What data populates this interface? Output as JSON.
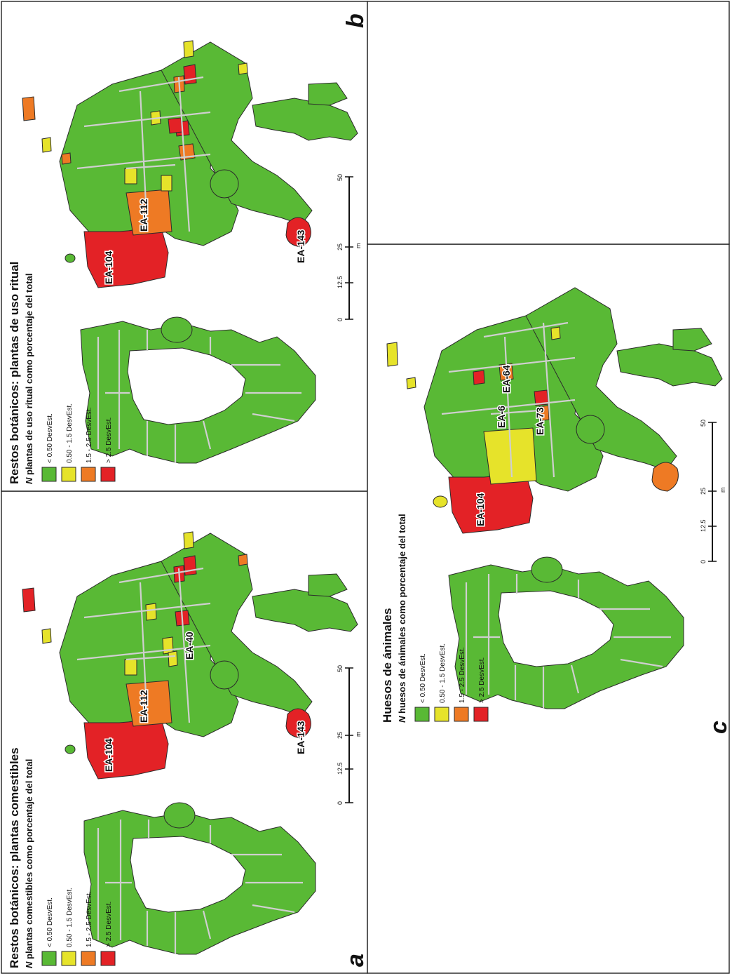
{
  "colors": {
    "green": "#59b935",
    "yellow": "#e6e32a",
    "orange": "#ee7a24",
    "red": "#e32226"
  },
  "panels": {
    "a": {
      "letter": "a",
      "title": "Restos botánicos: plantas comestibles",
      "subtitle_italic": "N",
      "subtitle_rest": " plantas comestibles como porcentaje del total",
      "legend": [
        "< 0.50 DesvEst.",
        "0.50 - 1.5 DesvEst.",
        "1.5 - 2.5 DesvEst.",
        "> 2.5 DesvEst."
      ],
      "labels": [
        "EA-104",
        "EA-112",
        "EA-40",
        "EA-143"
      ]
    },
    "b": {
      "letter": "b",
      "title": "Restos botánicos: plantas de uso ritual",
      "subtitle_italic": "N",
      "subtitle_rest": " plantas de uso ritual como porcentaje del total",
      "legend": [
        "< 0.50 DesvEst.",
        "0.50 - 1.5 DesvEst.",
        "1.5 - 2.5 DesvEst.",
        "> 2.5 DesvEst."
      ],
      "labels": [
        "EA-104",
        "EA-112",
        "EA-143"
      ]
    },
    "c": {
      "letter": "c",
      "title": "Huesos de ánimales",
      "subtitle_italic": "N",
      "subtitle_rest": " huesos de ánimales como porcentaje del total",
      "legend": [
        "< 0.50 DesvEst.",
        "0.50 - 1.5 DesvEst.",
        "1.5 - 2.5 DesvEst.",
        "> 2.5 DesvEst."
      ],
      "labels": [
        "EA-104",
        "EA-6",
        "EA-64",
        "EA-73"
      ]
    }
  },
  "scale": {
    "ticks": [
      "0",
      "12.5",
      "25",
      "50"
    ],
    "unit": "m"
  }
}
